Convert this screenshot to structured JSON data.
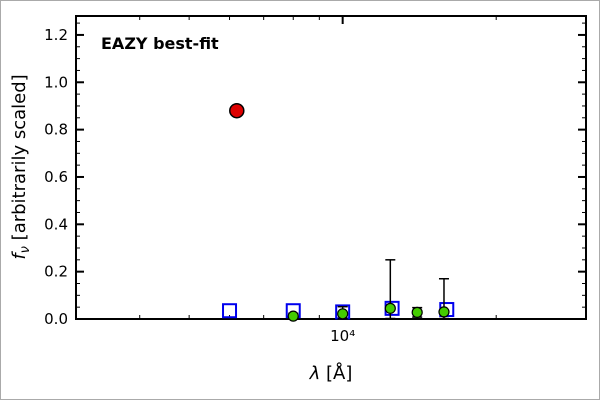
{
  "annotation": {
    "label": "EAZY best-fit",
    "color": "#ee0000"
  },
  "axes": {
    "xlabel_lambda": "λ",
    "xlabel_rest": " [Å]",
    "ylabel_f": "f",
    "ylabel_sub": "ν",
    "ylabel_rest": " [arbitrarily scaled]",
    "x_major_tick_label": "10⁴"
  },
  "chart_data": {
    "type": "scatter",
    "title": "",
    "xlabel": "lambda [Angstrom]",
    "ylabel": "f_nu [arbitrarily scaled]",
    "x_scale": "log",
    "xlim": [
      3000,
      30000
    ],
    "ylim": [
      0,
      1.28
    ],
    "y_major_ticks": [
      0.0,
      0.2,
      0.4,
      0.6,
      0.8,
      1.0,
      1.2
    ],
    "y_tick_labels": [
      "0.0",
      "0.2",
      "0.4",
      "0.6",
      "0.8",
      "1.0",
      "1.2"
    ],
    "y_minor_step": 0.05,
    "x_major_ticks": [
      10000
    ],
    "x_major_tick_labels": [
      "10⁴"
    ],
    "x_minor_ticks": [
      3000,
      4000,
      5000,
      6000,
      7000,
      8000,
      9000,
      20000,
      30000
    ],
    "grid": false,
    "legend": "none",
    "annotation": {
      "text": "EAZY best-fit",
      "color": "#ee0000",
      "position": "top-left"
    },
    "series": [
      {
        "name": "model-photometry",
        "marker": "open-square",
        "edge_color": "#0000ee",
        "fill_color": "none",
        "points": [
          {
            "x": 6000,
            "y": 0.035
          },
          {
            "x": 8000,
            "y": 0.035
          },
          {
            "x": 10000,
            "y": 0.03
          },
          {
            "x": 12500,
            "y": 0.045
          },
          {
            "x": 16000,
            "y": 0.04
          }
        ]
      },
      {
        "name": "observed-photometry",
        "marker": "circle",
        "edge_color": "#000000",
        "fill_color": "#44cc00",
        "error_color": "#000000",
        "points": [
          {
            "x": 8000,
            "y": 0.012,
            "yerr": 0.012
          },
          {
            "x": 10000,
            "y": 0.022,
            "yerr": 0.03
          },
          {
            "x": 12400,
            "y": 0.045,
            "yerr": 0.205
          },
          {
            "x": 14000,
            "y": 0.028,
            "yerr": 0.02
          },
          {
            "x": 15800,
            "y": 0.03,
            "yerr": 0.14
          }
        ]
      },
      {
        "name": "best-fit-model-point",
        "marker": "circle",
        "edge_color": "#000000",
        "fill_color": "#dd0000",
        "points": [
          {
            "x": 6200,
            "y": 0.88
          }
        ]
      }
    ]
  }
}
